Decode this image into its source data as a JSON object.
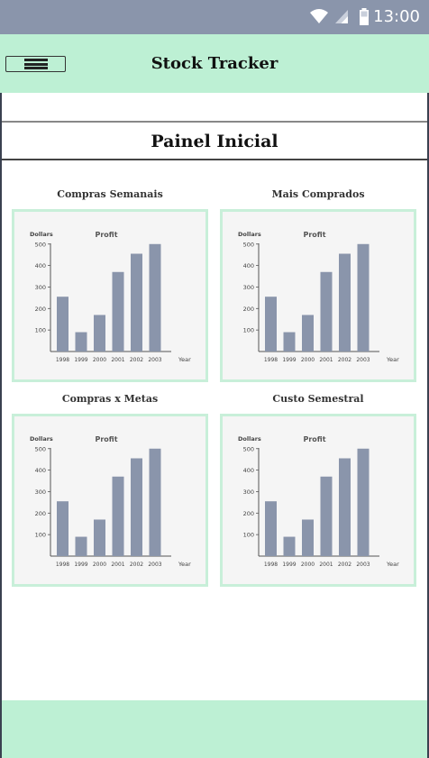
{
  "status_bar": {
    "time": "13:00",
    "icons": [
      "wifi-icon",
      "signal-icon",
      "battery-icon"
    ]
  },
  "app_bar": {
    "title": "Stock Tracker",
    "menu_icon": "hamburger-menu-icon"
  },
  "page": {
    "title": "Painel Inicial"
  },
  "colors": {
    "accent": "#bdf0d4",
    "status_bar": "#8a95ab",
    "bar": "#8a95ab",
    "card_border": "#c8efd9"
  },
  "cards": [
    {
      "title": "Compras Semanais"
    },
    {
      "title": "Mais Comprados"
    },
    {
      "title": "Compras x Metas"
    },
    {
      "title": "Custo Semestral"
    }
  ],
  "chart_data": [
    {
      "type": "bar",
      "title": "Profit",
      "ylabel": "Dollars",
      "xlabel": "Year",
      "categories": [
        "1998",
        "1999",
        "2000",
        "2001",
        "2002",
        "2003"
      ],
      "values": [
        255,
        90,
        170,
        370,
        455,
        500
      ],
      "yticks": [
        100,
        200,
        300,
        400,
        500
      ],
      "ylim": [
        0,
        520
      ]
    },
    {
      "type": "bar",
      "title": "Profit",
      "ylabel": "Dollars",
      "xlabel": "Year",
      "categories": [
        "1998",
        "1999",
        "2000",
        "2001",
        "2002",
        "2003"
      ],
      "values": [
        255,
        90,
        170,
        370,
        455,
        500
      ],
      "yticks": [
        100,
        200,
        300,
        400,
        500
      ],
      "ylim": [
        0,
        520
      ]
    },
    {
      "type": "bar",
      "title": "Profit",
      "ylabel": "Dollars",
      "xlabel": "Year",
      "categories": [
        "1998",
        "1999",
        "2000",
        "2001",
        "2002",
        "2003"
      ],
      "values": [
        255,
        90,
        170,
        370,
        455,
        500
      ],
      "yticks": [
        100,
        200,
        300,
        400,
        500
      ],
      "ylim": [
        0,
        520
      ]
    },
    {
      "type": "bar",
      "title": "Profit",
      "ylabel": "Dollars",
      "xlabel": "Year",
      "categories": [
        "1998",
        "1999",
        "2000",
        "2001",
        "2002",
        "2003"
      ],
      "values": [
        255,
        90,
        170,
        370,
        455,
        500
      ],
      "yticks": [
        100,
        200,
        300,
        400,
        500
      ],
      "ylim": [
        0,
        520
      ]
    }
  ]
}
